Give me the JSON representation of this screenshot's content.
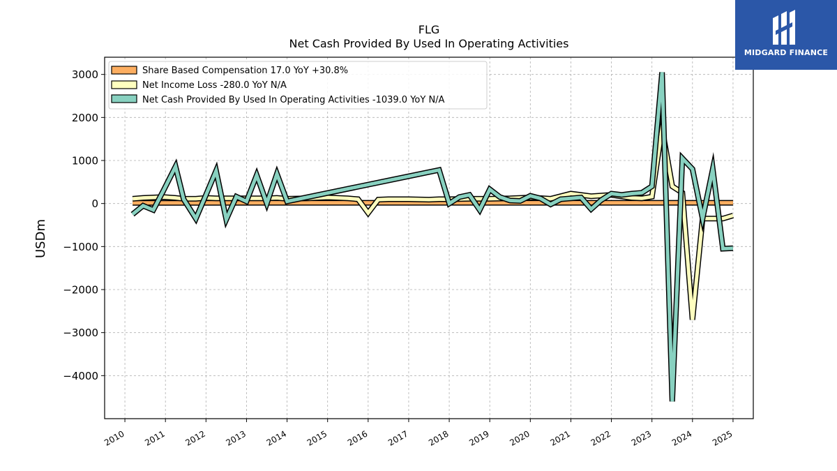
{
  "brand": {
    "name": "MIDGARD FINANCE",
    "bg_color": "#2b57a8",
    "icon": "midgard-logo-icon"
  },
  "chart_data": {
    "type": "line",
    "title": "FLG",
    "subtitle": "Net Cash Provided By Used In Operating Activities",
    "ylabel": "USDm",
    "xlabel": "",
    "xlim": [
      2009.5,
      2025.5
    ],
    "ylim": [
      -5000,
      3400
    ],
    "x_ticks": [
      2010,
      2011,
      2012,
      2013,
      2014,
      2015,
      2016,
      2017,
      2018,
      2019,
      2020,
      2021,
      2022,
      2023,
      2024,
      2025
    ],
    "y_ticks": [
      3000,
      2000,
      1000,
      0,
      -1000,
      -2000,
      -3000,
      -4000
    ],
    "y_tick_labels": [
      "3000",
      "2000",
      "1000",
      "0",
      "−1000",
      "−2000",
      "−3000",
      "−4000"
    ],
    "grid": true,
    "legend_position": "top-left",
    "series": [
      {
        "name": "Share Based Compensation",
        "legend_label": "Share Based Compensation  17.0 YoY +30.8%",
        "color": "#fdae61",
        "x": [
          2010.19,
          2025.0
        ],
        "y": [
          15,
          17
        ]
      },
      {
        "name": "Net Income Loss",
        "legend_label": "Net Income Loss  -280.0 YoY N/A",
        "color": "#ffffbf",
        "x": [
          2010.19,
          2010.45,
          2010.7,
          2010.95,
          2011.25,
          2011.45,
          2011.75,
          2012.0,
          2012.25,
          2012.5,
          2012.75,
          2013.0,
          2013.25,
          2013.5,
          2013.75,
          2014.0,
          2014.5,
          2015.0,
          2015.5,
          2015.75,
          2016.0,
          2016.25,
          2016.5,
          2017.0,
          2017.5,
          2017.75,
          2018.0,
          2018.5,
          2019.0,
          2019.5,
          2020.0,
          2020.5,
          2021.0,
          2021.5,
          2022.0,
          2022.5,
          2022.75,
          2023.0,
          2023.25,
          2023.5,
          2023.75,
          2024.0,
          2024.25,
          2024.5,
          2024.75,
          2025.0
        ],
        "y": [
          110,
          130,
          140,
          150,
          130,
          110,
          110,
          130,
          120,
          120,
          120,
          120,
          120,
          120,
          130,
          110,
          120,
          140,
          120,
          100,
          -220,
          90,
          100,
          100,
          90,
          100,
          100,
          110,
          110,
          120,
          140,
          110,
          230,
          170,
          200,
          130,
          120,
          160,
          1750,
          400,
          250,
          -2700,
          -350,
          -350,
          -350,
          -280
        ]
      },
      {
        "name": "Net Cash Provided By Used In Operating Activities",
        "legend_label": "Net Cash Provided By Used In Operating Activities  -1039.0 YoY N/A",
        "color": "#88d1c0",
        "x": [
          2010.19,
          2010.45,
          2010.7,
          2010.95,
          2011.25,
          2011.45,
          2011.75,
          2012.0,
          2012.25,
          2012.5,
          2012.75,
          2013.0,
          2013.25,
          2013.5,
          2013.75,
          2014.0,
          2017.75,
          2018.0,
          2018.25,
          2018.5,
          2018.75,
          2019.0,
          2019.25,
          2019.5,
          2019.75,
          2020.0,
          2020.25,
          2020.5,
          2020.75,
          2021.0,
          2021.25,
          2021.5,
          2021.75,
          2022.0,
          2022.25,
          2022.5,
          2022.75,
          2023.0,
          2023.25,
          2023.5,
          2023.75,
          2024.0,
          2024.25,
          2024.5,
          2024.75,
          2025.0
        ],
        "y": [
          -250,
          -50,
          -150,
          300,
          860,
          100,
          -350,
          200,
          760,
          -370,
          160,
          50,
          660,
          0,
          690,
          50,
          780,
          0,
          150,
          200,
          -150,
          330,
          150,
          70,
          60,
          180,
          120,
          -20,
          100,
          120,
          140,
          -130,
          80,
          230,
          200,
          230,
          250,
          400,
          3050,
          -4600,
          1050,
          800,
          -350,
          800,
          -1050,
          -1039
        ]
      }
    ]
  }
}
